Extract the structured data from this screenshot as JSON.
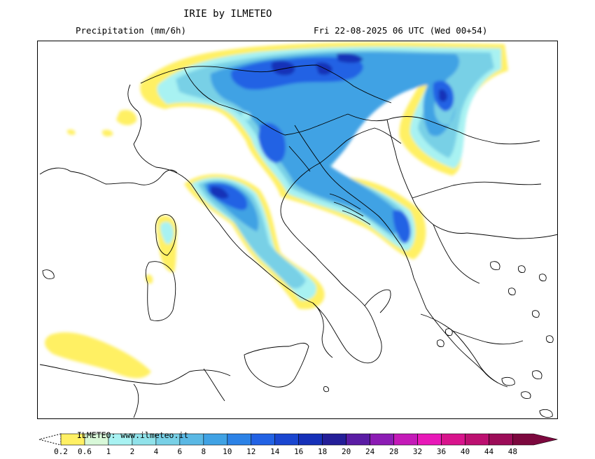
{
  "header": {
    "title": "IRIE by ILMETEO",
    "subtitle": "Precipitation (mm/6h)",
    "datetime": "Fri 22-08-2025 06 UTC (Wed 00+54)"
  },
  "map": {
    "region": "Central Mediterranean / Italy / Balkans",
    "coastline_color": "#000000",
    "precip_cores": [
      "Alps and Austria",
      "Croatian coast",
      "Tuscany and Liguria",
      "Albania and Montenegro",
      "Slovakia and Hungary"
    ]
  },
  "legend": {
    "credit": "ILMETEO: www.ilmeteo.it",
    "ticks": [
      "0.2",
      "0.6",
      "1",
      "2",
      "4",
      "6",
      "8",
      "10",
      "12",
      "14",
      "16",
      "18",
      "20",
      "24",
      "28",
      "32",
      "36",
      "40",
      "44",
      "48"
    ],
    "colors": [
      "#fff064",
      "#d8f8d8",
      "#a8f2f2",
      "#90e2ea",
      "#78d0e6",
      "#5ab8e4",
      "#40a2e4",
      "#2c82e6",
      "#2262e4",
      "#1a46d0",
      "#1630b8",
      "#241e98",
      "#5a1ca4",
      "#8c1cb4",
      "#c41ab8",
      "#e818b8",
      "#d8148c",
      "#bc1070",
      "#9c0c58",
      "#7c083e"
    ]
  }
}
